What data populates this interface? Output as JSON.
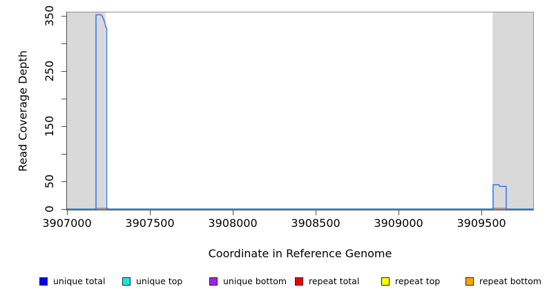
{
  "chart_data": {
    "type": "line",
    "title": "",
    "xlabel": "Coordinate in Reference Genome",
    "ylabel": "Read Coverage Depth",
    "xlim": [
      3907000,
      3909812
    ],
    "ylim": [
      0,
      357
    ],
    "grid": false,
    "legend_position": "bottom",
    "x_ticks": [
      3907000,
      3907500,
      3908000,
      3908500,
      3909000,
      3909500
    ],
    "x_tick_labels": [
      "3907000",
      "3907500",
      "3908000",
      "3908500",
      "3909000",
      "3909500"
    ],
    "y_ticks": [
      0,
      50,
      100,
      150,
      200,
      250,
      300,
      350
    ],
    "y_labeled_ticks": [
      {
        "value": 0,
        "label": "0"
      },
      {
        "value": 50,
        "label": "50"
      },
      {
        "value": 150,
        "label": "150"
      },
      {
        "value": 250,
        "label": "250"
      },
      {
        "value": 350,
        "label": "350"
      }
    ],
    "shade_color": "#d9d9d9",
    "shaded_regions": [
      {
        "x0": 3907000,
        "x1": 3907232
      },
      {
        "x0": 3909567,
        "x1": 3909812
      }
    ],
    "series": [
      {
        "name": "repeat top",
        "color": "#ffff00",
        "segments": [
          [
            [
              3907000,
              0
            ],
            [
              3909812,
              0
            ]
          ]
        ]
      },
      {
        "name": "repeat bottom",
        "color": "#ffa500",
        "segments": [
          [
            [
              3907000,
              0
            ],
            [
              3909812,
              0
            ]
          ]
        ]
      },
      {
        "name": "unique top",
        "color": "#00eeee",
        "segments": [
          [
            [
              3907000,
              0
            ],
            [
              3909812,
              0
            ]
          ]
        ]
      },
      {
        "name": "repeat total",
        "color": "#f4665e",
        "segments": [
          [
            [
              3907173,
              0
            ],
            [
              3907173,
              1.5
            ],
            [
              3907247,
              1.5
            ],
            [
              3907247,
              0
            ]
          ],
          [
            [
              3909566,
              0
            ],
            [
              3909566,
              1.5
            ],
            [
              3909651,
              1.5
            ],
            [
              3909651,
              0
            ]
          ]
        ]
      },
      {
        "name": "unique bottom",
        "color": "#9b7be9",
        "segments": [
          [
            [
              3907000,
              0
            ],
            [
              3909812,
              0
            ]
          ]
        ]
      },
      {
        "name": "unique total",
        "color": "#3b7cf0",
        "segments": [
          [
            [
              3907000,
              0
            ],
            [
              3907175,
              0
            ],
            [
              3907175,
              352
            ],
            [
              3907204,
              352
            ],
            [
              3907213,
              349
            ],
            [
              3907222,
              343
            ],
            [
              3907230,
              335
            ],
            [
              3907236,
              328
            ],
            [
              3907239,
              328
            ],
            [
              3907239,
              0
            ],
            [
              3909570,
              0
            ],
            [
              3909570,
              44
            ],
            [
              3909606,
              44
            ],
            [
              3909610,
              41
            ],
            [
              3909649,
              41
            ],
            [
              3909649,
              0
            ],
            [
              3909812,
              0
            ]
          ]
        ]
      }
    ]
  },
  "legend": {
    "items": [
      {
        "label": "unique total",
        "fill": "#0000ee"
      },
      {
        "label": "unique top",
        "fill": "#00eeee"
      },
      {
        "label": "unique bottom",
        "fill": "#a020f0"
      },
      {
        "label": "repeat total",
        "fill": "#ee0000"
      },
      {
        "label": "repeat top",
        "fill": "#ffff00"
      },
      {
        "label": "repeat bottom",
        "fill": "#ffa500"
      }
    ]
  }
}
